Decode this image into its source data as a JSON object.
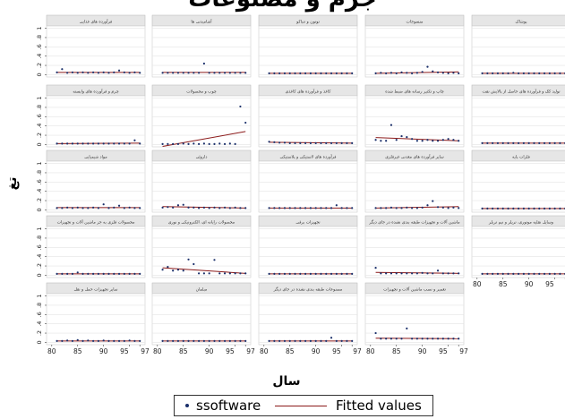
{
  "page": {
    "title": "جرم و مصنوعات",
    "legend": {
      "series_label": "ssoftware",
      "fit_label": "Fitted values"
    }
  },
  "colors": {
    "point": "#1a2f6a",
    "fit_line": "#8b1a1a",
    "grid": "#e4e4e4",
    "panel_header": "#e6e6e6"
  },
  "chart_data": {
    "type": "scatter",
    "layout": "small-multiples",
    "xlabel": "سال",
    "ylabel": "تغ",
    "x_ticks": [
      80,
      85,
      90,
      95,
      97
    ],
    "x_tick_labels": [
      "80",
      "85",
      "90",
      "95",
      "97"
    ],
    "xlim": [
      79,
      98
    ],
    "y_ticks": [
      0,
      0.2,
      0.4,
      0.6,
      0.8,
      1
    ],
    "y_tick_labels": [
      "0",
      ".2",
      ".4",
      ".6",
      ".8",
      "1"
    ],
    "ylim": [
      -0.05,
      1.05
    ],
    "x": [
      81,
      82,
      83,
      84,
      85,
      86,
      87,
      88,
      89,
      90,
      91,
      92,
      93,
      94,
      95,
      96,
      97
    ],
    "panels": [
      {
        "title": "فرآورده های غذایی",
        "values": [
          0.05,
          0.12,
          0.04,
          0.05,
          0.04,
          0.05,
          0.04,
          0.05,
          0.04,
          0.05,
          0.04,
          0.05,
          0.09,
          0.05,
          0.04,
          0.05,
          0.04
        ],
        "fit": [
          0.05,
          0.05
        ]
      },
      {
        "title": "آشامیدنی ها",
        "values": [
          0.04,
          0.04,
          0.04,
          0.04,
          0.04,
          0.04,
          0.04,
          0.04,
          0.24,
          0.04,
          0.04,
          0.04,
          0.04,
          0.04,
          0.04,
          0.04,
          0.04
        ],
        "fit": [
          0.05,
          0.05
        ]
      },
      {
        "title": "توتون و تنباکو",
        "values": [
          0.03,
          0.03,
          0.03,
          0.03,
          0.03,
          0.03,
          0.03,
          0.03,
          0.03,
          0.03,
          0.03,
          0.03,
          0.03,
          0.03,
          0.03,
          0.03,
          0.03
        ],
        "fit": [
          0.03,
          0.03
        ]
      },
      {
        "title": "منسوجات",
        "values": [
          0.03,
          0.04,
          0.03,
          0.04,
          0.03,
          0.05,
          0.04,
          0.03,
          0.04,
          0.06,
          0.17,
          0.07,
          0.05,
          0.04,
          0.03,
          0.04,
          0.03
        ],
        "fit": [
          0.03,
          0.06
        ]
      },
      {
        "title": "پوشاک",
        "values": [
          0.03,
          0.03,
          0.03,
          0.03,
          0.03,
          0.03,
          0.04,
          0.03,
          0.03,
          0.03,
          0.03,
          0.03,
          0.03,
          0.03,
          0.03,
          0.03,
          0.03
        ],
        "fit": [
          0.03,
          0.03
        ]
      },
      {
        "title": "چرم و فرآورده های وابسته",
        "values": [
          0.02,
          0.02,
          0.02,
          0.02,
          0.02,
          0.02,
          0.02,
          0.02,
          0.02,
          0.02,
          0.02,
          0.02,
          0.02,
          0.02,
          0.02,
          0.09,
          0.02
        ],
        "fit": [
          0.02,
          0.03
        ]
      },
      {
        "title": "چوب و محصولات",
        "values": [
          0.01,
          0.01,
          0.01,
          0.01,
          0.02,
          0.01,
          0.02,
          0.01,
          0.02,
          0.01,
          0.01,
          0.02,
          0.01,
          0.02,
          0.01,
          0.82,
          0.47
        ],
        "fit": [
          -0.04,
          0.28
        ]
      },
      {
        "title": "کاغذ و فرآورده های کاغذی",
        "values": [
          0.06,
          0.05,
          0.04,
          0.04,
          0.03,
          0.03,
          0.03,
          0.03,
          0.03,
          0.03,
          0.03,
          0.03,
          0.03,
          0.03,
          0.03,
          0.03,
          0.03
        ],
        "fit": [
          0.05,
          0.03
        ]
      },
      {
        "title": "چاپ و تکثیر رسانه های ضبط شده",
        "values": [
          0.1,
          0.08,
          0.08,
          0.42,
          0.1,
          0.18,
          0.16,
          0.12,
          0.08,
          0.08,
          0.1,
          0.08,
          0.08,
          0.1,
          0.12,
          0.1,
          0.08
        ],
        "fit": [
          0.15,
          0.08
        ]
      },
      {
        "title": "تولید کک و فرآورده های حاصل از پالایش نفت",
        "values": [
          0.03,
          0.03,
          0.03,
          0.03,
          0.03,
          0.03,
          0.03,
          0.03,
          0.03,
          0.03,
          0.03,
          0.03,
          0.03,
          0.03,
          0.03,
          0.03,
          0.03
        ],
        "fit": [
          0.03,
          0.03
        ]
      },
      {
        "title": "مواد شیمیایی",
        "values": [
          0.04,
          0.04,
          0.05,
          0.04,
          0.05,
          0.04,
          0.04,
          0.05,
          0.04,
          0.12,
          0.04,
          0.05,
          0.09,
          0.04,
          0.05,
          0.04,
          0.04
        ],
        "fit": [
          0.05,
          0.05
        ]
      },
      {
        "title": "داروئی",
        "values": [
          0.05,
          0.06,
          0.05,
          0.1,
          0.11,
          0.05,
          0.05,
          0.04,
          0.05,
          0.04,
          0.05,
          0.04,
          0.05,
          0.04,
          0.05,
          0.04,
          0.04
        ],
        "fit": [
          0.07,
          0.04
        ]
      },
      {
        "title": "فرآورده های لاستیکی و پلاستیکی",
        "values": [
          0.04,
          0.04,
          0.04,
          0.04,
          0.04,
          0.04,
          0.04,
          0.04,
          0.04,
          0.04,
          0.04,
          0.04,
          0.04,
          0.1,
          0.04,
          0.04,
          0.04
        ],
        "fit": [
          0.04,
          0.04
        ]
      },
      {
        "title": "سایر فرآورده های معدنی غیرفلزی",
        "values": [
          0.04,
          0.04,
          0.04,
          0.05,
          0.04,
          0.04,
          0.05,
          0.04,
          0.04,
          0.05,
          0.1,
          0.19,
          0.06,
          0.05,
          0.04,
          0.05,
          0.04
        ],
        "fit": [
          0.04,
          0.07
        ]
      },
      {
        "title": "فلزات پایه",
        "values": [
          0.03,
          0.03,
          0.03,
          0.03,
          0.03,
          0.03,
          0.03,
          0.03,
          0.03,
          0.03,
          0.03,
          0.03,
          0.03,
          0.03,
          0.03,
          0.03,
          0.03
        ],
        "fit": [
          0.03,
          0.03
        ]
      },
      {
        "title": "محصولات فلزی به جز ماشین آلات و تجهیزات",
        "values": [
          0.03,
          0.03,
          0.03,
          0.03,
          0.06,
          0.03,
          0.03,
          0.03,
          0.03,
          0.03,
          0.03,
          0.03,
          0.03,
          0.03,
          0.03,
          0.03,
          0.03
        ],
        "fit": [
          0.03,
          0.03
        ]
      },
      {
        "title": "محصولات رایانه ای، الکترونیکی و نوری",
        "values": [
          0.12,
          0.18,
          0.1,
          0.12,
          0.1,
          0.34,
          0.24,
          0.04,
          0.04,
          0.04,
          0.33,
          0.04,
          0.04,
          0.04,
          0.04,
          0.04,
          0.04
        ],
        "fit": [
          0.16,
          0.04
        ]
      },
      {
        "title": "تجهیزات برقی",
        "values": [
          0.03,
          0.03,
          0.03,
          0.03,
          0.03,
          0.03,
          0.03,
          0.03,
          0.03,
          0.03,
          0.03,
          0.03,
          0.03,
          0.03,
          0.03,
          0.03,
          0.03
        ],
        "fit": [
          0.03,
          0.03
        ]
      },
      {
        "title": "ماشین آلات و تجهیزات طبقه بندی نشده در جای دیگر",
        "values": [
          0.16,
          0.04,
          0.04,
          0.04,
          0.04,
          0.04,
          0.04,
          0.04,
          0.04,
          0.05,
          0.04,
          0.04,
          0.1,
          0.04,
          0.04,
          0.04,
          0.04
        ],
        "fit": [
          0.06,
          0.04
        ]
      },
      {
        "title": "وسایل نقلیه موتوری، تریلر و نیم تریلر",
        "values": [
          0.03,
          0.03,
          0.03,
          0.03,
          0.03,
          0.03,
          0.03,
          0.03,
          0.03,
          0.03,
          0.03,
          0.03,
          0.03,
          0.03,
          0.03,
          0.03,
          0.03
        ],
        "fit": [
          0.03,
          0.03
        ]
      },
      {
        "title": "سایر تجهیزات حمل و نقل",
        "values": [
          0.03,
          0.03,
          0.04,
          0.03,
          0.05,
          0.03,
          0.04,
          0.03,
          0.03,
          0.04,
          0.03,
          0.03,
          0.03,
          0.03,
          0.04,
          0.03,
          0.03
        ],
        "fit": [
          0.03,
          0.03
        ]
      },
      {
        "title": "مبلمان",
        "values": [
          0.03,
          0.03,
          0.03,
          0.03,
          0.03,
          0.03,
          0.03,
          0.03,
          0.03,
          0.03,
          0.03,
          0.03,
          0.03,
          0.03,
          0.03,
          0.03,
          0.03
        ],
        "fit": [
          0.03,
          0.03
        ]
      },
      {
        "title": "مصنوعات طبقه بندی نشده در جای دیگر",
        "values": [
          0.03,
          0.03,
          0.03,
          0.03,
          0.03,
          0.03,
          0.03,
          0.03,
          0.03,
          0.03,
          0.03,
          0.03,
          0.1,
          0.03,
          0.03,
          0.03,
          0.03
        ],
        "fit": [
          0.03,
          0.03
        ]
      },
      {
        "title": "تعمیر و نصب ماشین آلات و تجهیزات",
        "values": [
          0.2,
          0.08,
          0.08,
          0.08,
          0.08,
          0.08,
          0.3,
          0.08,
          0.08,
          0.08,
          0.08,
          0.08,
          0.08,
          0.08,
          0.08,
          0.08,
          0.08
        ],
        "fit": [
          0.09,
          0.08
        ]
      }
    ]
  }
}
